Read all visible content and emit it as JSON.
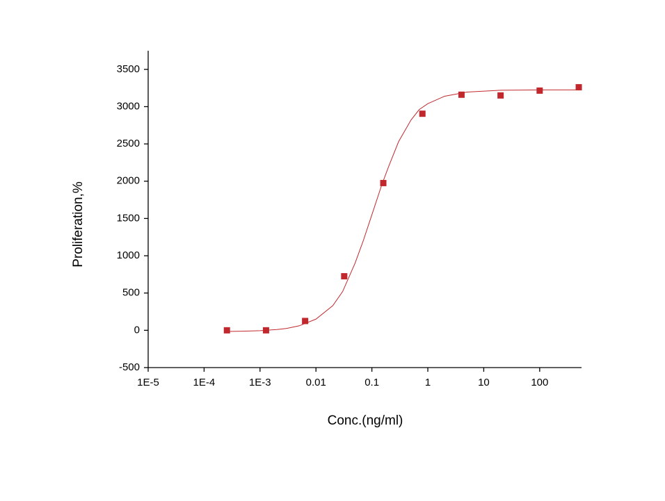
{
  "chart_data": {
    "type": "scatter",
    "x_label": "Conc.(ng/ml)",
    "y_label": "Proliferation,%",
    "x_scale": "log",
    "xlim": [
      1e-05,
      560
    ],
    "ylim": [
      -500,
      3750
    ],
    "xticks": [
      {
        "value": 1e-05,
        "label": "1E-5"
      },
      {
        "value": 0.0001,
        "label": "1E-4"
      },
      {
        "value": 0.001,
        "label": "1E-3"
      },
      0.01,
      0.1,
      1,
      10,
      100
    ],
    "yticks": [
      -500,
      0,
      500,
      1000,
      1500,
      2000,
      2500,
      3000,
      3500
    ],
    "series": [
      {
        "kind": "points",
        "color": "#c0282d",
        "x": [
          0.000256,
          0.00128,
          0.0064,
          0.032,
          0.16,
          0.8,
          4,
          20,
          100,
          500
        ],
        "values": [
          0,
          0,
          125,
          725,
          1975,
          2905,
          3160,
          3150,
          3215,
          3260
        ]
      },
      {
        "kind": "line",
        "color": "#c0282d",
        "x": [
          0.000256,
          0.0005,
          0.001,
          0.002,
          0.003,
          0.005,
          0.01,
          0.02,
          0.03,
          0.05,
          0.07,
          0.1,
          0.15,
          0.2,
          0.3,
          0.5,
          0.7,
          1,
          2,
          5,
          20,
          100,
          500
        ],
        "values": [
          -15,
          -12,
          -5,
          10,
          25,
          60,
          150,
          330,
          520,
          900,
          1200,
          1550,
          1950,
          2200,
          2530,
          2820,
          2960,
          3040,
          3140,
          3195,
          3220,
          3225,
          3225
        ]
      }
    ]
  }
}
